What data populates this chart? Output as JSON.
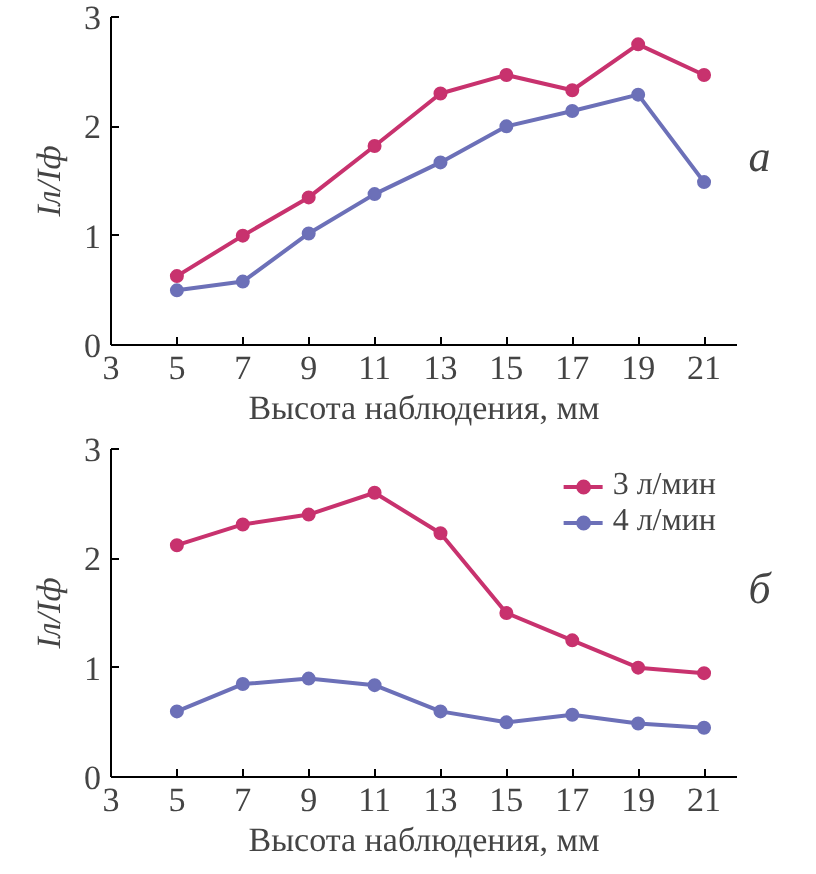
{
  "chart_data": [
    {
      "type": "line",
      "xlabel": "Высота наблюдения, мм",
      "ylabel": "Iл/Iф",
      "x": [
        5,
        7,
        9,
        11,
        13,
        15,
        17,
        19,
        21
      ],
      "xlim": [
        3,
        22
      ],
      "xticks": [
        3,
        5,
        7,
        9,
        11,
        13,
        15,
        17,
        19,
        21
      ],
      "ylim": [
        0,
        3
      ],
      "yticks": [
        0,
        1,
        2,
        3
      ],
      "marker": "circle",
      "grid": false,
      "legend": false,
      "annotations": [
        "а"
      ],
      "series": [
        {
          "color": "#c8326e",
          "values": [
            0.63,
            1.0,
            1.35,
            1.82,
            2.3,
            2.47,
            2.33,
            2.75,
            2.47
          ]
        },
        {
          "color": "#6c70b8",
          "values": [
            0.5,
            0.58,
            1.02,
            1.38,
            1.67,
            2.0,
            2.14,
            2.29,
            1.49
          ]
        }
      ]
    },
    {
      "type": "line",
      "xlabel": "Высота наблюдения, мм",
      "ylabel": "Iл/Iф",
      "x": [
        5,
        7,
        9,
        11,
        13,
        15,
        17,
        19,
        21
      ],
      "xlim": [
        3,
        22
      ],
      "xticks": [
        3,
        5,
        7,
        9,
        11,
        13,
        15,
        17,
        19,
        21
      ],
      "ylim": [
        0,
        3
      ],
      "yticks": [
        0,
        1,
        2,
        3
      ],
      "marker": "circle",
      "grid": false,
      "legend": "top right",
      "annotations": [
        "б"
      ],
      "series": [
        {
          "name": "3 л/мин",
          "color": "#c8326e",
          "values": [
            2.12,
            2.31,
            2.4,
            2.6,
            2.23,
            1.5,
            1.25,
            1.0,
            0.95
          ]
        },
        {
          "name": "4 л/мин",
          "color": "#6c70b8",
          "values": [
            0.6,
            0.85,
            0.9,
            0.84,
            0.6,
            0.5,
            0.57,
            0.49,
            0.45
          ]
        }
      ]
    }
  ]
}
